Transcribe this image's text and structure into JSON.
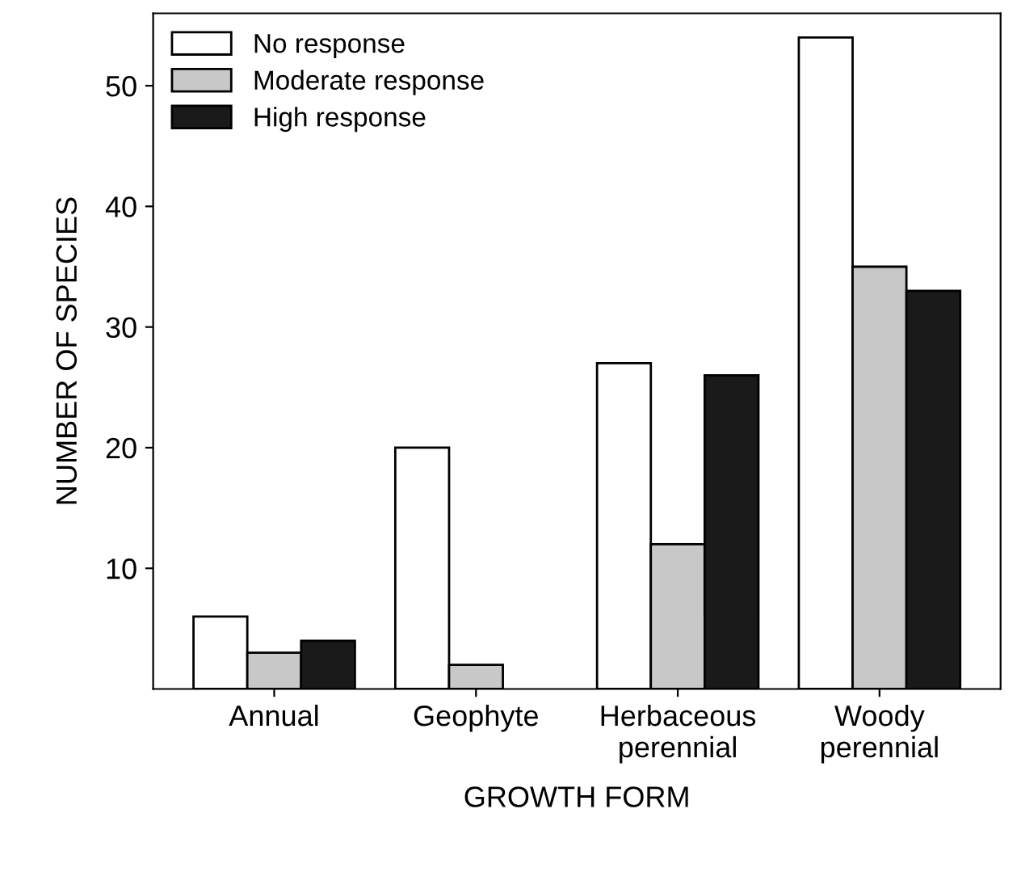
{
  "chart_data": {
    "type": "bar",
    "xlabel": "GROWTH FORM",
    "ylabel": "NUMBER OF SPECIES",
    "categories": [
      "Annual",
      "Geophyte",
      "Herbaceous\nperennial",
      "Woody\nperennial"
    ],
    "series": [
      {
        "name": "No response",
        "color": "#ffffff",
        "values": [
          6,
          20,
          27,
          54
        ]
      },
      {
        "name": "Moderate response",
        "color": "#c8c8c8",
        "values": [
          3,
          2,
          12,
          35
        ]
      },
      {
        "name": "High response",
        "color": "#1a1a1a",
        "values": [
          4,
          null,
          26,
          33
        ]
      }
    ],
    "ylim": [
      0,
      56
    ],
    "yticks": [
      10,
      20,
      30,
      40,
      50
    ],
    "grid": false,
    "legend": "top left"
  }
}
